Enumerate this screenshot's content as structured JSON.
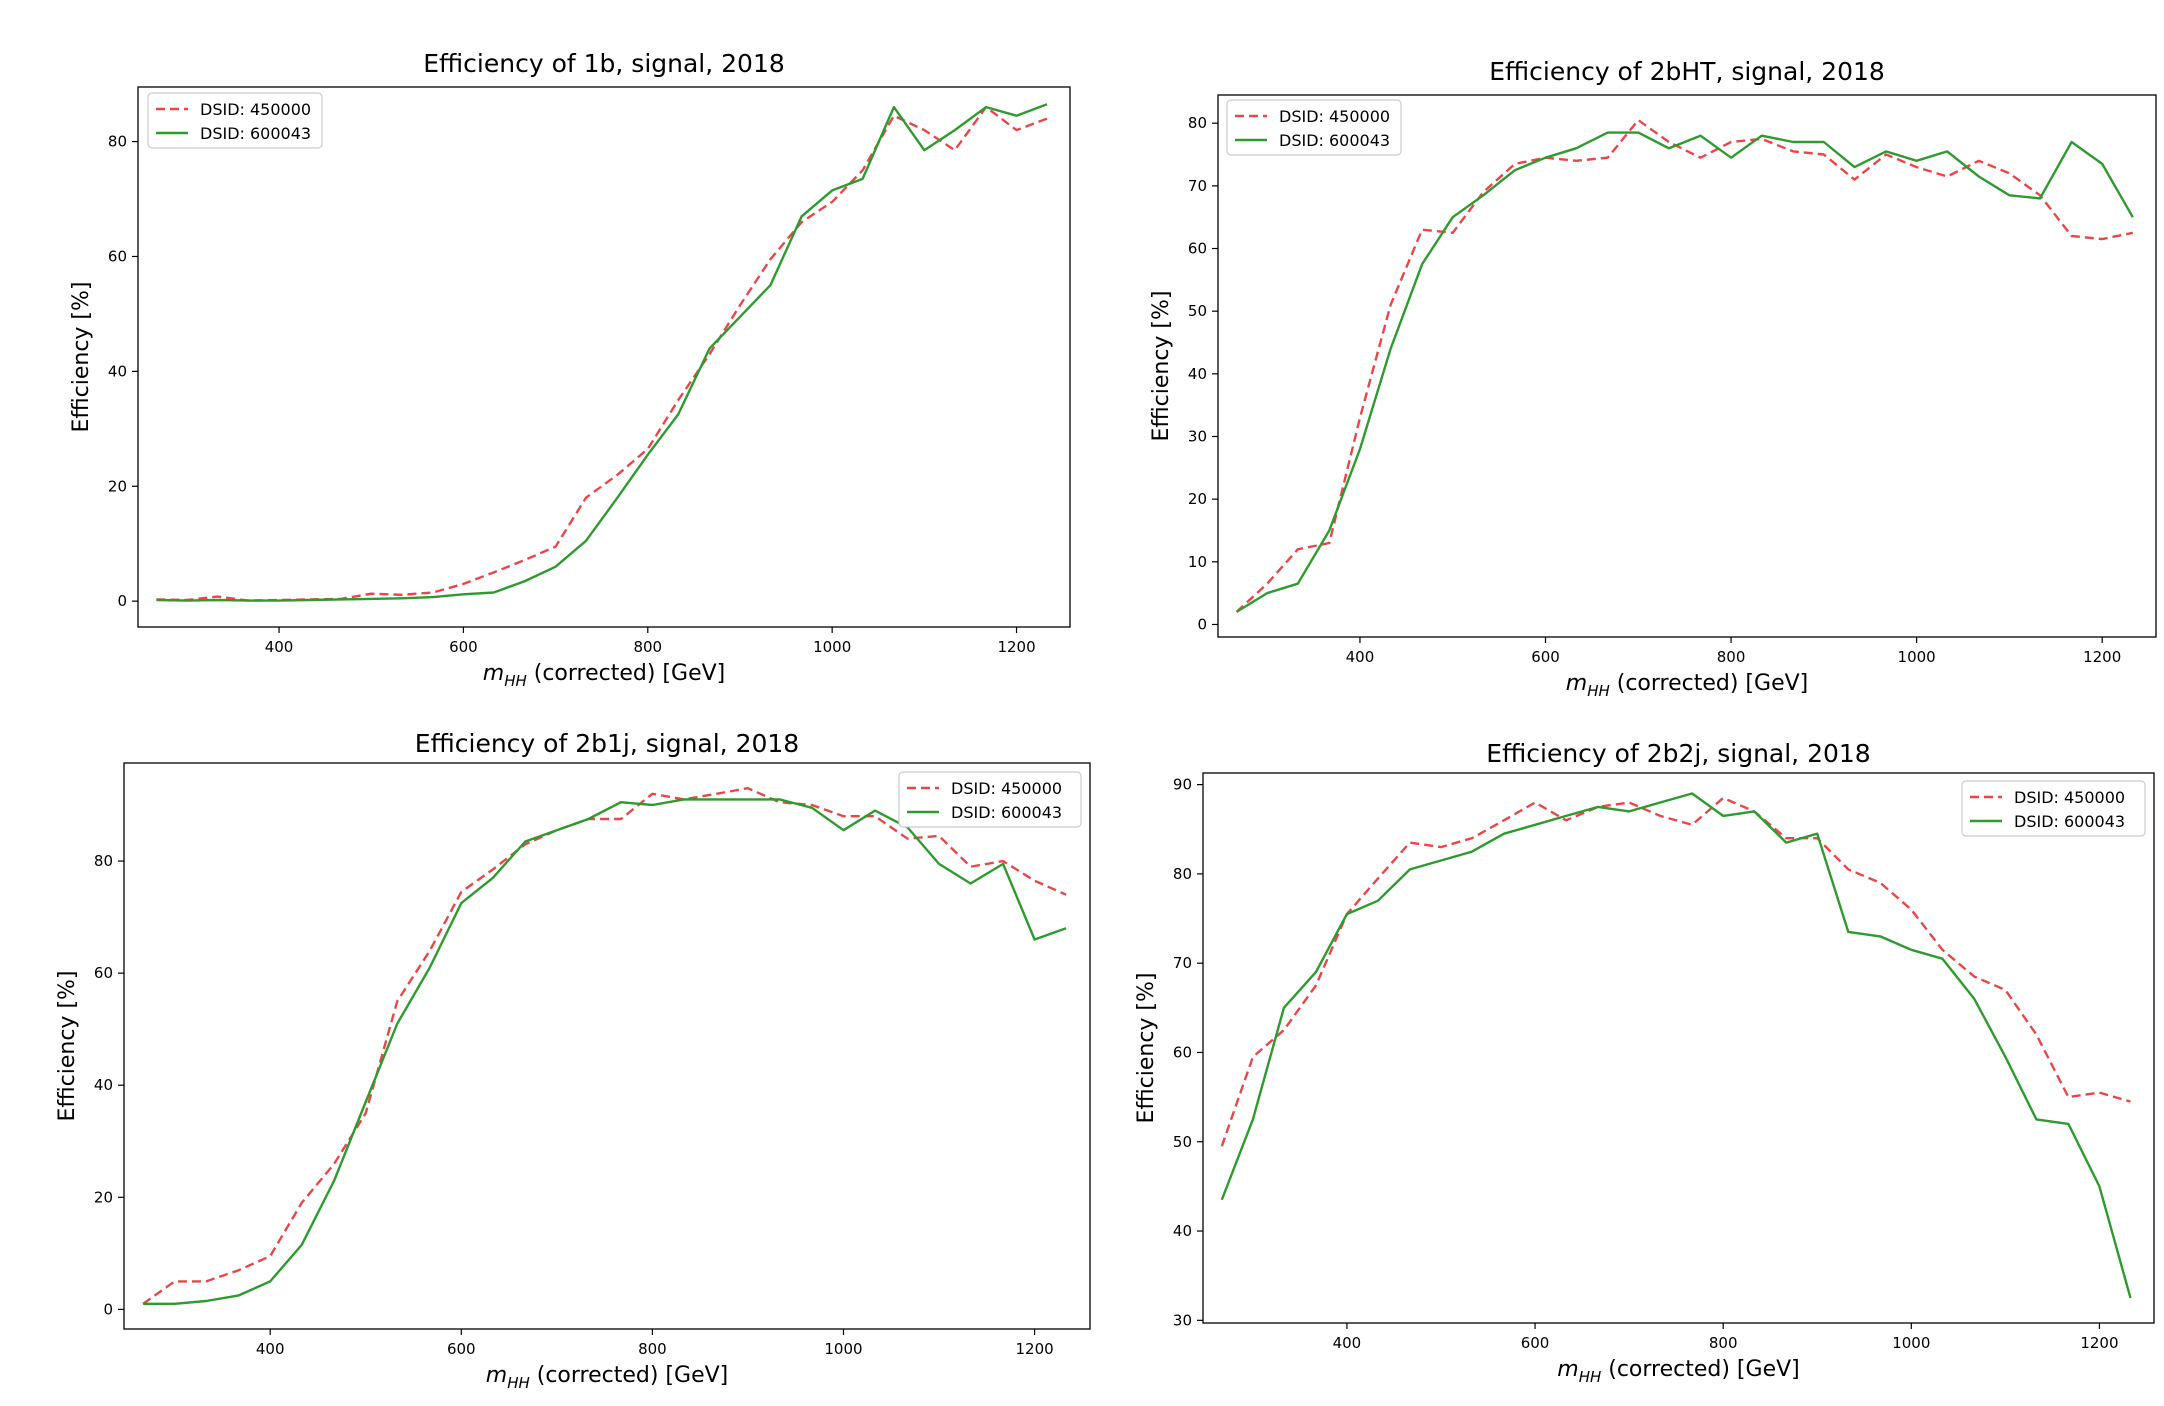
{
  "chart_data": [
    {
      "type": "line",
      "title": "Efficiency of 1b, signal, 2018",
      "xlabel": "m_HH (corrected) [GeV]",
      "xlabel_main": "m",
      "xlabel_sub": "HH",
      "xlabel_rest": " (corrected) [GeV]",
      "ylabel": "Efficiency [%]",
      "xlim": [
        247,
        1258
      ],
      "ylim": [
        -4.5,
        89.5
      ],
      "xticks": [
        400,
        600,
        800,
        1000,
        1200
      ],
      "yticks": [
        0,
        20,
        40,
        60,
        80
      ],
      "legend_position": "upper-left",
      "grid": false,
      "x": [
        267,
        300,
        333,
        367,
        400,
        433,
        467,
        500,
        533,
        567,
        600,
        633,
        667,
        700,
        733,
        767,
        800,
        833,
        867,
        900,
        933,
        967,
        1000,
        1033,
        1067,
        1100,
        1133,
        1167,
        1200,
        1233
      ],
      "series": [
        {
          "name": "DSID: 450000",
          "color": "#e8474a",
          "dash": "dashed",
          "values": [
            0.3,
            0.2,
            0.8,
            0.1,
            0.2,
            0.3,
            0.4,
            1.3,
            1.1,
            1.5,
            3.0,
            5.0,
            7.2,
            9.5,
            18.0,
            22.0,
            26.5,
            35.0,
            43.0,
            51.5,
            59.5,
            66.0,
            69.5,
            75.0,
            84.5,
            82.0,
            78.5,
            86.0,
            82.0,
            84.0
          ]
        },
        {
          "name": "DSID: 600043",
          "color": "#2f9a2f",
          "dash": "solid",
          "values": [
            0.2,
            0.1,
            0.2,
            0.1,
            0.1,
            0.2,
            0.3,
            0.4,
            0.5,
            0.7,
            1.2,
            1.5,
            3.5,
            6.0,
            10.5,
            18.0,
            25.5,
            32.5,
            44.0,
            49.5,
            55.0,
            67.0,
            71.5,
            73.5,
            86.0,
            78.5,
            82.0,
            86.0,
            84.5,
            86.5
          ]
        }
      ]
    },
    {
      "type": "line",
      "title": "Efficiency of 2bHT, signal, 2018",
      "xlabel": "m_HH (corrected) [GeV]",
      "xlabel_main": "m",
      "xlabel_sub": "HH",
      "xlabel_rest": " (corrected) [GeV]",
      "ylabel": "Efficiency [%]",
      "xlim": [
        247,
        1258
      ],
      "ylim": [
        -2,
        84.5
      ],
      "xticks": [
        400,
        600,
        800,
        1000,
        1200
      ],
      "yticks": [
        0,
        10,
        20,
        30,
        40,
        50,
        60,
        70,
        80
      ],
      "legend_position": "upper-left",
      "grid": false,
      "x": [
        267,
        300,
        333,
        367,
        400,
        433,
        467,
        500,
        533,
        567,
        600,
        633,
        667,
        700,
        733,
        767,
        800,
        833,
        867,
        900,
        933,
        967,
        1000,
        1033,
        1067,
        1100,
        1133,
        1167,
        1200,
        1233
      ],
      "series": [
        {
          "name": "DSID: 450000",
          "color": "#e8474a",
          "dash": "dashed",
          "values": [
            2.0,
            6.5,
            12.0,
            13.0,
            33.0,
            51.0,
            63.0,
            62.5,
            69.0,
            73.5,
            74.5,
            74.0,
            74.5,
            80.5,
            77.0,
            74.5,
            77.0,
            77.5,
            75.5,
            75.0,
            71.0,
            75.0,
            73.0,
            71.5,
            74.0,
            72.0,
            68.5,
            62.0,
            61.5,
            62.5
          ]
        },
        {
          "name": "DSID: 600043",
          "color": "#2f9a2f",
          "dash": "solid",
          "values": [
            2.0,
            5.0,
            6.5,
            15.0,
            28.0,
            44.0,
            57.5,
            65.0,
            68.5,
            72.5,
            74.5,
            76.0,
            78.5,
            78.5,
            76.0,
            78.0,
            74.5,
            78.0,
            77.0,
            77.0,
            73.0,
            75.5,
            74.0,
            75.5,
            71.5,
            68.5,
            68.0,
            77.0,
            73.5,
            65.0
          ]
        }
      ]
    },
    {
      "type": "line",
      "title": "Efficiency of 2b1j, signal, 2018",
      "xlabel": "m_HH (corrected) [GeV]",
      "xlabel_main": "m",
      "xlabel_sub": "HH",
      "xlabel_rest": " (corrected) [GeV]",
      "ylabel": "Efficiency [%]",
      "xlim": [
        247,
        1258
      ],
      "ylim": [
        -3.5,
        97.5
      ],
      "xticks": [
        400,
        600,
        800,
        1000,
        1200
      ],
      "yticks": [
        0,
        20,
        40,
        60,
        80
      ],
      "legend_position": "upper-right",
      "grid": false,
      "x": [
        267,
        300,
        333,
        367,
        400,
        433,
        467,
        500,
        533,
        567,
        600,
        633,
        667,
        700,
        733,
        767,
        800,
        833,
        867,
        900,
        933,
        967,
        1000,
        1033,
        1067,
        1100,
        1133,
        1167,
        1200,
        1233
      ],
      "series": [
        {
          "name": "DSID: 450000",
          "color": "#e8474a",
          "dash": "dashed",
          "values": [
            1.0,
            5.0,
            5.0,
            7.0,
            9.5,
            19.0,
            26.0,
            35.0,
            55.0,
            64.0,
            74.5,
            78.5,
            83.0,
            85.5,
            87.5,
            87.5,
            92.0,
            91.0,
            92.0,
            93.0,
            90.5,
            90.0,
            88.0,
            88.0,
            84.0,
            84.5,
            79.0,
            80.0,
            76.5,
            74.0
          ]
        },
        {
          "name": "DSID: 600043",
          "color": "#2f9a2f",
          "dash": "solid",
          "values": [
            1.0,
            1.0,
            1.5,
            2.5,
            5.0,
            11.5,
            23.0,
            37.0,
            51.0,
            61.0,
            72.5,
            77.0,
            83.5,
            85.5,
            87.5,
            90.5,
            90.0,
            91.0,
            91.0,
            91.0,
            91.0,
            89.5,
            85.5,
            89.0,
            86.0,
            79.5,
            76.0,
            79.5,
            66.0,
            68.0
          ]
        }
      ]
    },
    {
      "type": "line",
      "title": "Efficiency of 2b2j, signal, 2018",
      "xlabel": "m_HH (corrected) [GeV]",
      "xlabel_main": "m",
      "xlabel_sub": "HH",
      "xlabel_rest": " (corrected) [GeV]",
      "ylabel": "Efficiency [%]",
      "xlim": [
        247,
        1258
      ],
      "ylim": [
        29.7,
        91.3
      ],
      "xticks": [
        400,
        600,
        800,
        1000,
        1200
      ],
      "yticks": [
        30,
        40,
        50,
        60,
        70,
        80,
        90
      ],
      "legend_position": "upper-right",
      "grid": false,
      "x": [
        267,
        300,
        333,
        367,
        400,
        433,
        467,
        500,
        533,
        567,
        600,
        633,
        667,
        700,
        733,
        767,
        800,
        833,
        867,
        900,
        933,
        967,
        1000,
        1033,
        1067,
        1100,
        1133,
        1167,
        1200,
        1233
      ],
      "series": [
        {
          "name": "DSID: 450000",
          "color": "#e8474a",
          "dash": "dashed",
          "values": [
            49.5,
            59.5,
            62.5,
            67.5,
            75.5,
            79.5,
            83.5,
            83.0,
            84.0,
            86.0,
            88.0,
            86.0,
            87.5,
            88.0,
            86.5,
            85.5,
            88.5,
            87.0,
            84.0,
            84.0,
            80.5,
            79.0,
            76.0,
            71.5,
            68.5,
            67.0,
            62.0,
            55.0,
            55.5,
            54.5
          ]
        },
        {
          "name": "DSID: 600043",
          "color": "#2f9a2f",
          "dash": "solid",
          "values": [
            43.5,
            52.5,
            65.0,
            69.0,
            75.5,
            77.0,
            80.5,
            81.5,
            82.5,
            84.5,
            85.5,
            86.5,
            87.5,
            87.0,
            88.0,
            89.0,
            86.5,
            87.0,
            83.5,
            84.5,
            73.5,
            73.0,
            71.5,
            70.5,
            66.0,
            59.5,
            52.5,
            52.0,
            45.0,
            32.5
          ]
        }
      ]
    }
  ]
}
